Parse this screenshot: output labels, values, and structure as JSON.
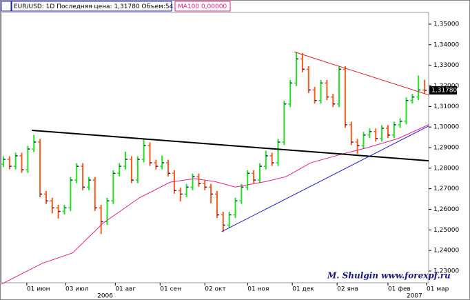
{
  "chart_data": {
    "type": "ohlc",
    "title": "EUR/USD: 1D Последняя цена: 1,31780 Объем:54",
    "indicator_label": "MA100 0,00000",
    "watermark": "M. Shulgin www.forexpf.ru",
    "last_price": {
      "value": 1.3178,
      "label": "1,31780"
    },
    "up_color": "#22e022",
    "down_color": "#ff5a1a",
    "x": [
      1,
      4,
      7,
      10,
      13,
      16,
      19,
      22,
      25,
      28,
      31,
      34,
      37,
      40,
      43,
      46,
      49,
      52,
      55,
      58,
      61,
      64,
      67,
      70,
      73,
      76,
      79,
      82,
      85,
      88,
      91,
      94,
      97,
      100,
      103,
      106,
      109,
      112,
      115,
      118,
      121,
      124,
      127,
      130,
      133,
      136,
      139,
      142,
      145,
      148,
      151,
      154,
      157,
      160,
      163,
      166,
      169,
      172,
      175,
      178,
      181,
      184,
      187,
      190,
      193,
      196,
      199,
      202,
      205,
      208
    ],
    "open": [
      1.282,
      1.2843,
      1.2809,
      1.286,
      1.2792,
      1.2893,
      1.2927,
      1.2674,
      1.2641,
      1.2607,
      1.259,
      1.2607,
      1.2742,
      1.2809,
      1.2708,
      1.2742,
      1.2607,
      1.254,
      1.2641,
      1.2775,
      1.2809,
      1.2843,
      1.2742,
      1.2843,
      1.291,
      1.2826,
      1.2809,
      1.2826,
      1.2775,
      1.2691,
      1.2674,
      1.2708,
      1.2759,
      1.2725,
      1.2708,
      1.2674,
      1.2573,
      1.2523,
      1.2573,
      1.2641,
      1.2708,
      1.2775,
      1.2742,
      1.2809,
      1.286,
      1.2826,
      1.2927,
      1.3112,
      1.3214,
      1.3331,
      1.3281,
      1.318,
      1.3129,
      1.3214,
      1.3146,
      1.3112,
      1.3281,
      1.3011,
      1.2927,
      1.291,
      1.2961,
      1.2978,
      1.2944,
      1.2994,
      1.2961,
      1.3011,
      1.3028,
      1.3129,
      1.3146,
      1.318
    ],
    "high": [
      1.2858,
      1.2858,
      1.2875,
      1.2875,
      1.2908,
      1.2962,
      1.2942,
      1.2689,
      1.2656,
      1.2622,
      1.2622,
      1.2757,
      1.2824,
      1.2824,
      1.2757,
      1.2757,
      1.2622,
      1.2656,
      1.279,
      1.2824,
      1.288,
      1.2858,
      1.2858,
      1.2945,
      1.2925,
      1.2841,
      1.2861,
      1.2841,
      1.279,
      1.2706,
      1.2723,
      1.2774,
      1.2774,
      1.274,
      1.2723,
      1.2689,
      1.2588,
      1.2588,
      1.2656,
      1.2723,
      1.279,
      1.279,
      1.2824,
      1.2885,
      1.2875,
      1.2942,
      1.3127,
      1.3229,
      1.3365,
      1.336,
      1.3296,
      1.3195,
      1.3229,
      1.3229,
      1.3161,
      1.3296,
      1.3296,
      1.3026,
      1.2942,
      1.2976,
      1.2993,
      1.2993,
      1.3009,
      1.3009,
      1.3026,
      1.3043,
      1.3144,
      1.3161,
      1.325,
      1.323
    ],
    "low": [
      1.2805,
      1.2794,
      1.2794,
      1.2777,
      1.2777,
      1.2878,
      1.2659,
      1.2626,
      1.258,
      1.2555,
      1.2575,
      1.2592,
      1.2727,
      1.2693,
      1.2693,
      1.2592,
      1.248,
      1.2525,
      1.2626,
      1.276,
      1.2794,
      1.2727,
      1.2727,
      1.2828,
      1.2811,
      1.2794,
      1.2794,
      1.276,
      1.2676,
      1.2639,
      1.2659,
      1.2693,
      1.271,
      1.2693,
      1.2629,
      1.2558,
      1.249,
      1.2508,
      1.2558,
      1.2626,
      1.2693,
      1.2727,
      1.2727,
      1.2794,
      1.2811,
      1.2811,
      1.2912,
      1.3097,
      1.3199,
      1.3266,
      1.3165,
      1.3114,
      1.3114,
      1.3131,
      1.3097,
      1.3097,
      1.2996,
      1.2912,
      1.287,
      1.2895,
      1.2946,
      1.2929,
      1.2929,
      1.2946,
      1.2946,
      1.2996,
      1.3013,
      1.3114,
      1.3131,
      1.3163
    ],
    "close": [
      1.2843,
      1.2809,
      1.286,
      1.2792,
      1.2893,
      1.2927,
      1.2674,
      1.2641,
      1.2607,
      1.259,
      1.2607,
      1.2742,
      1.2809,
      1.2708,
      1.2742,
      1.2607,
      1.254,
      1.2641,
      1.2775,
      1.2809,
      1.2843,
      1.2742,
      1.2843,
      1.291,
      1.2826,
      1.2809,
      1.2826,
      1.2775,
      1.2691,
      1.2674,
      1.2708,
      1.2759,
      1.2725,
      1.2708,
      1.2674,
      1.2573,
      1.2523,
      1.2573,
      1.2641,
      1.2708,
      1.2775,
      1.2742,
      1.2809,
      1.286,
      1.2826,
      1.2927,
      1.3112,
      1.3214,
      1.3331,
      1.3281,
      1.318,
      1.3129,
      1.3214,
      1.3146,
      1.3112,
      1.3281,
      1.3011,
      1.2927,
      1.291,
      1.2961,
      1.2978,
      1.2944,
      1.2994,
      1.2961,
      1.3011,
      1.3028,
      1.3129,
      1.3146,
      1.318,
      1.3178
    ],
    "ma100": {
      "color": "#e0208a",
      "x": [
        0,
        20,
        35,
        50,
        68,
        83,
        95,
        105,
        115,
        130,
        140,
        152,
        168,
        180,
        195,
        210
      ],
      "values": [
        1.2236,
        1.2337,
        1.2388,
        1.2533,
        1.2657,
        1.2732,
        1.2749,
        1.2735,
        1.2708,
        1.2735,
        1.2759,
        1.2826,
        1.287,
        1.29,
        1.2944,
        1.3011
      ]
    },
    "trendlines": [
      {
        "color": "#000000",
        "x": [
          14.9,
          210
        ],
        "values": [
          1.2984,
          1.2836
        ]
      },
      {
        "color": "#e02020",
        "x": [
          144,
          210
        ],
        "values": [
          1.3365,
          1.3156
        ]
      },
      {
        "color": "#1a1acc",
        "x": [
          108.4,
          210
        ],
        "values": [
          1.2492,
          1.3005
        ]
      }
    ],
    "xlim": [
      0,
      210
    ],
    "ylim": [
      1.2243,
      1.3557
    ],
    "xticks": [
      {
        "value": 12.5,
        "label": "01 июн"
      },
      {
        "value": 31.5,
        "label": "03 июл"
      },
      {
        "value": 56,
        "label": "01 авг"
      },
      {
        "value": 78,
        "label": "01 сен"
      },
      {
        "value": 100,
        "label": "02 окт"
      },
      {
        "value": 121,
        "label": "01 ноя"
      },
      {
        "value": 143,
        "label": "01 дек"
      },
      {
        "value": 165,
        "label": "02 янв"
      },
      {
        "value": 190,
        "label": "01 фев"
      },
      {
        "value": 209,
        "label": "01 мар"
      }
    ],
    "year_labels": [
      {
        "value": 51,
        "label": "2006"
      },
      {
        "value": 203,
        "label": "2007"
      }
    ],
    "yticks": [
      {
        "value": 1.23,
        "label": "1,23000"
      },
      {
        "value": 1.24,
        "label": "1,24000"
      },
      {
        "value": 1.25,
        "label": "1,25000"
      },
      {
        "value": 1.26,
        "label": "1,26000"
      },
      {
        "value": 1.27,
        "label": "1,27000"
      },
      {
        "value": 1.28,
        "label": "1,28000"
      },
      {
        "value": 1.29,
        "label": "1,29000"
      },
      {
        "value": 1.3,
        "label": "1,30000"
      },
      {
        "value": 1.31,
        "label": "1,31000"
      },
      {
        "value": 1.32,
        "label": "1,32000"
      },
      {
        "value": 1.33,
        "label": "1,33000"
      },
      {
        "value": 1.34,
        "label": "1,34000"
      },
      {
        "value": 1.35,
        "label": "1,35000"
      }
    ]
  }
}
